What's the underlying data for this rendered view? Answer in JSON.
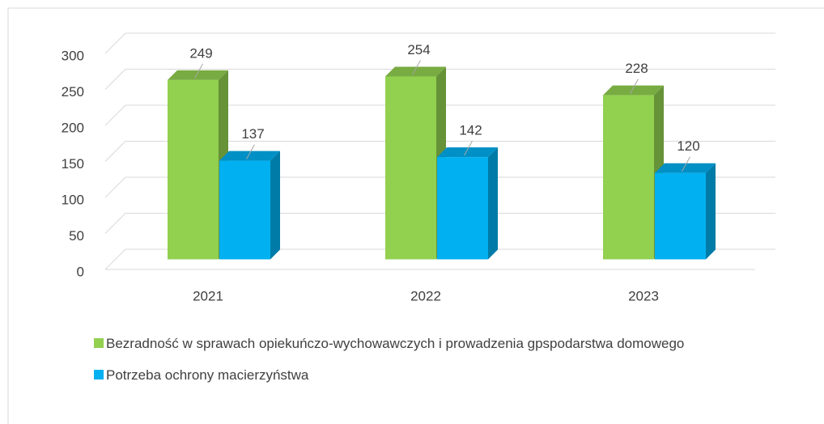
{
  "chart_data": {
    "type": "bar3d",
    "categories": [
      "2021",
      "2022",
      "2023"
    ],
    "series": [
      {
        "name": "Bezradność w sprawach opiekuńczo-wychowawczych i prowadzenia gpspodarstwa domowego",
        "color": "#92d050",
        "values": [
          249,
          254,
          228
        ]
      },
      {
        "name": "Potrzeba ochrony macierzyństwa",
        "color": "#00b0f0",
        "values": [
          137,
          142,
          120
        ]
      }
    ],
    "ylim": [
      0,
      300
    ],
    "yticks": [
      0,
      50,
      100,
      150,
      200,
      250,
      300
    ],
    "grid": true,
    "legend": "bottom"
  }
}
